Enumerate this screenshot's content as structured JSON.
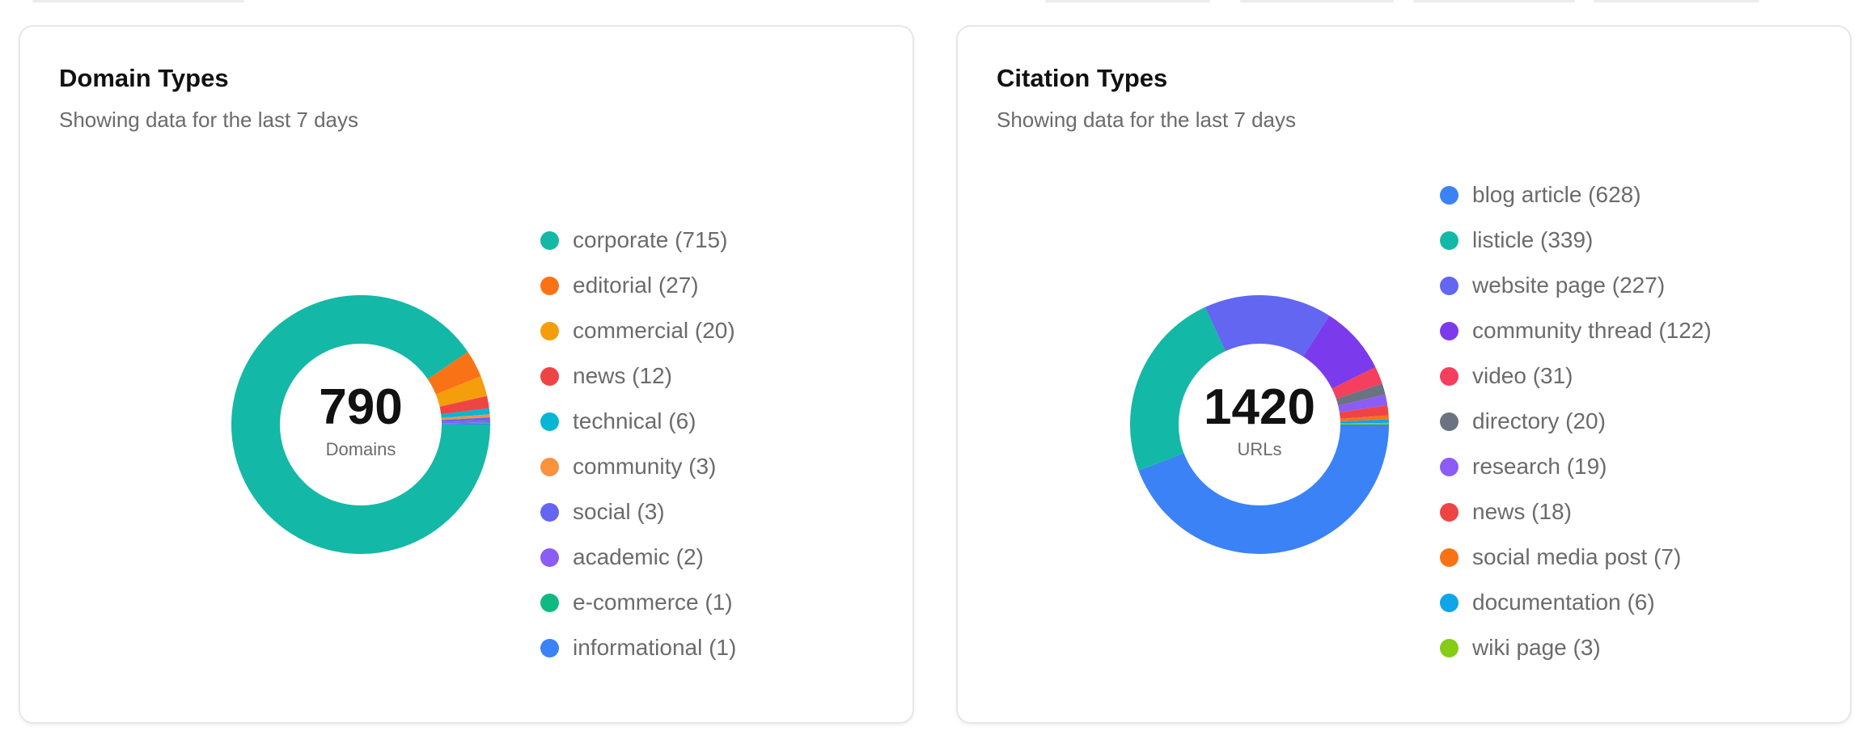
{
  "chart_data": [
    {
      "type": "pie",
      "title": "Domain Types",
      "subtitle": "Showing data for the last 7 days",
      "center_value": "790",
      "center_label": "Domains",
      "legend_placement": "right",
      "slices": [
        {
          "label": "corporate",
          "value": 715,
          "color": "#14b8a6"
        },
        {
          "label": "editorial",
          "value": 27,
          "color": "#f97316"
        },
        {
          "label": "commercial",
          "value": 20,
          "color": "#f59e0b"
        },
        {
          "label": "news",
          "value": 12,
          "color": "#ef4444"
        },
        {
          "label": "technical",
          "value": 6,
          "color": "#06b6d4"
        },
        {
          "label": "community",
          "value": 3,
          "color": "#fb923c"
        },
        {
          "label": "social",
          "value": 3,
          "color": "#6366f1"
        },
        {
          "label": "academic",
          "value": 2,
          "color": "#8b5cf6"
        },
        {
          "label": "e-commerce",
          "value": 1,
          "color": "#10b981"
        },
        {
          "label": "informational",
          "value": 1,
          "color": "#3b82f6"
        }
      ]
    },
    {
      "type": "pie",
      "title": "Citation Types",
      "subtitle": "Showing data for the last 7 days",
      "center_value": "1420",
      "center_label": "URLs",
      "legend_placement": "right",
      "slices": [
        {
          "label": "blog article",
          "value": 628,
          "color": "#3b82f6"
        },
        {
          "label": "listicle",
          "value": 339,
          "color": "#14b8a6"
        },
        {
          "label": "website page",
          "value": 227,
          "color": "#6366f1"
        },
        {
          "label": "community thread",
          "value": 122,
          "color": "#7c3aed"
        },
        {
          "label": "video",
          "value": 31,
          "color": "#f43f5e"
        },
        {
          "label": "directory",
          "value": 20,
          "color": "#6b7280"
        },
        {
          "label": "research",
          "value": 19,
          "color": "#8b5cf6"
        },
        {
          "label": "news",
          "value": 18,
          "color": "#ef4444"
        },
        {
          "label": "social media post",
          "value": 7,
          "color": "#f97316"
        },
        {
          "label": "documentation",
          "value": 6,
          "color": "#0ea5e9"
        },
        {
          "label": "wiki page",
          "value": 3,
          "color": "#84cc16"
        }
      ]
    }
  ]
}
